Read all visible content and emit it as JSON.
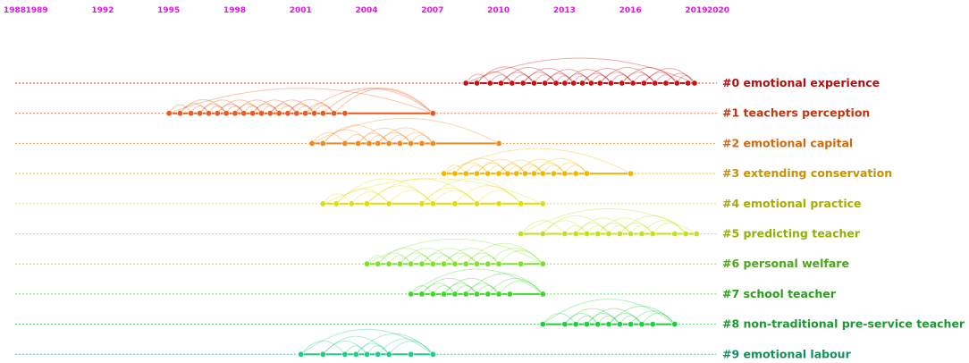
{
  "chart_data": {
    "type": "timeline",
    "title": "",
    "xlabel": "",
    "ylabel": "",
    "years": [
      1988,
      1989,
      1992,
      1995,
      1998,
      2001,
      2004,
      2007,
      2010,
      2013,
      2016,
      2019,
      2020
    ],
    "year_labels": [
      "1988",
      "1989",
      "1992",
      "1995",
      "1998",
      "2001",
      "2004",
      "2007",
      "2010",
      "2013",
      "2016",
      "2019",
      "2020"
    ],
    "colors": {
      "year_label": "#e016e0"
    },
    "clusters": [
      {
        "label": "#0 emotional experience",
        "color": "#cc1111",
        "text_color": "#b01010",
        "span": [
          2008.5,
          2018.9
        ],
        "nodes": [
          2008.5,
          2009.0,
          2009.6,
          2010.1,
          2010.6,
          2011.1,
          2011.6,
          2012.1,
          2012.6,
          2013.0,
          2013.4,
          2013.8,
          2014.2,
          2014.6,
          2015.1,
          2015.6,
          2016.1,
          2016.6,
          2017.1,
          2017.6,
          2018.1,
          2018.6,
          2018.9
        ]
      },
      {
        "label": "#1 teachers perception",
        "color": "#e65c1e",
        "text_color": "#c0360f",
        "span": [
          1995.0,
          2007.0
        ],
        "nodes": [
          1995.0,
          1995.5,
          1996.0,
          1996.4,
          1996.8,
          1997.2,
          1997.6,
          1998.0,
          1998.4,
          1998.8,
          1999.2,
          1999.6,
          2000.0,
          2000.4,
          2000.8,
          2001.2,
          2001.6,
          2002.0,
          2002.5,
          2003.0,
          2007.0
        ]
      },
      {
        "label": "#2 emotional capital",
        "color": "#ee8a22",
        "text_color": "#d06a10",
        "span": [
          2001.5,
          2010.0
        ],
        "nodes": [
          2001.5,
          2002.0,
          2003.0,
          2003.6,
          2004.1,
          2004.5,
          2005.0,
          2005.5,
          2006.0,
          2006.5,
          2007.0,
          2010.0
        ]
      },
      {
        "label": "#3 extending conservation",
        "color": "#f2b600",
        "text_color": "#c89200",
        "span": [
          2007.5,
          2016.0
        ],
        "nodes": [
          2007.5,
          2008.0,
          2008.5,
          2009.0,
          2009.5,
          2010.0,
          2010.4,
          2010.8,
          2011.2,
          2011.6,
          2012.0,
          2012.5,
          2013.0,
          2013.5,
          2014.0,
          2016.0
        ]
      },
      {
        "label": "#4 emotional practice",
        "color": "#e0e000",
        "text_color": "#a6ac00",
        "span": [
          2002.0,
          2012.0
        ],
        "nodes": [
          2002.0,
          2002.6,
          2003.3,
          2004.0,
          2005.0,
          2006.5,
          2007.0,
          2008.0,
          2009.0,
          2010.0,
          2011.0,
          2012.0
        ]
      },
      {
        "label": "#5 predicting teacher",
        "color": "#bde41a",
        "text_color": "#8fb300",
        "span": [
          2011.0,
          2019.0
        ],
        "nodes": [
          2011.0,
          2012.0,
          2013.0,
          2013.5,
          2014.0,
          2014.5,
          2015.0,
          2015.5,
          2016.0,
          2016.5,
          2017.0,
          2018.0,
          2018.5,
          2019.0
        ]
      },
      {
        "label": "#6 personal welfare",
        "color": "#7ee22a",
        "text_color": "#4ca61a",
        "span": [
          2004.0,
          2012.0
        ],
        "nodes": [
          2004.0,
          2004.5,
          2005.0,
          2005.5,
          2006.0,
          2006.5,
          2007.0,
          2007.5,
          2008.0,
          2008.5,
          2009.0,
          2009.5,
          2010.0,
          2011.0,
          2012.0
        ]
      },
      {
        "label": "#7 school teacher",
        "color": "#3fd82a",
        "text_color": "#28a018",
        "span": [
          2006.0,
          2012.0
        ],
        "nodes": [
          2006.0,
          2006.5,
          2007.0,
          2007.5,
          2008.0,
          2008.5,
          2009.0,
          2009.5,
          2010.0,
          2010.5,
          2012.0
        ]
      },
      {
        "label": "#8 non-traditional pre-service teacher",
        "color": "#22cc44",
        "text_color": "#1a9a30",
        "span": [
          2012.0,
          2018.0
        ],
        "nodes": [
          2012.0,
          2013.0,
          2013.5,
          2014.0,
          2014.5,
          2015.0,
          2015.5,
          2016.0,
          2016.5,
          2017.0,
          2018.0
        ]
      },
      {
        "label": "#9 emotional labour",
        "color": "#22cc88",
        "text_color": "#13905e",
        "span": [
          2001.0,
          2007.0
        ],
        "nodes": [
          2001.0,
          2002.0,
          2003.0,
          2003.5,
          2004.0,
          2004.5,
          2005.0,
          2006.0,
          2007.0
        ]
      }
    ]
  }
}
